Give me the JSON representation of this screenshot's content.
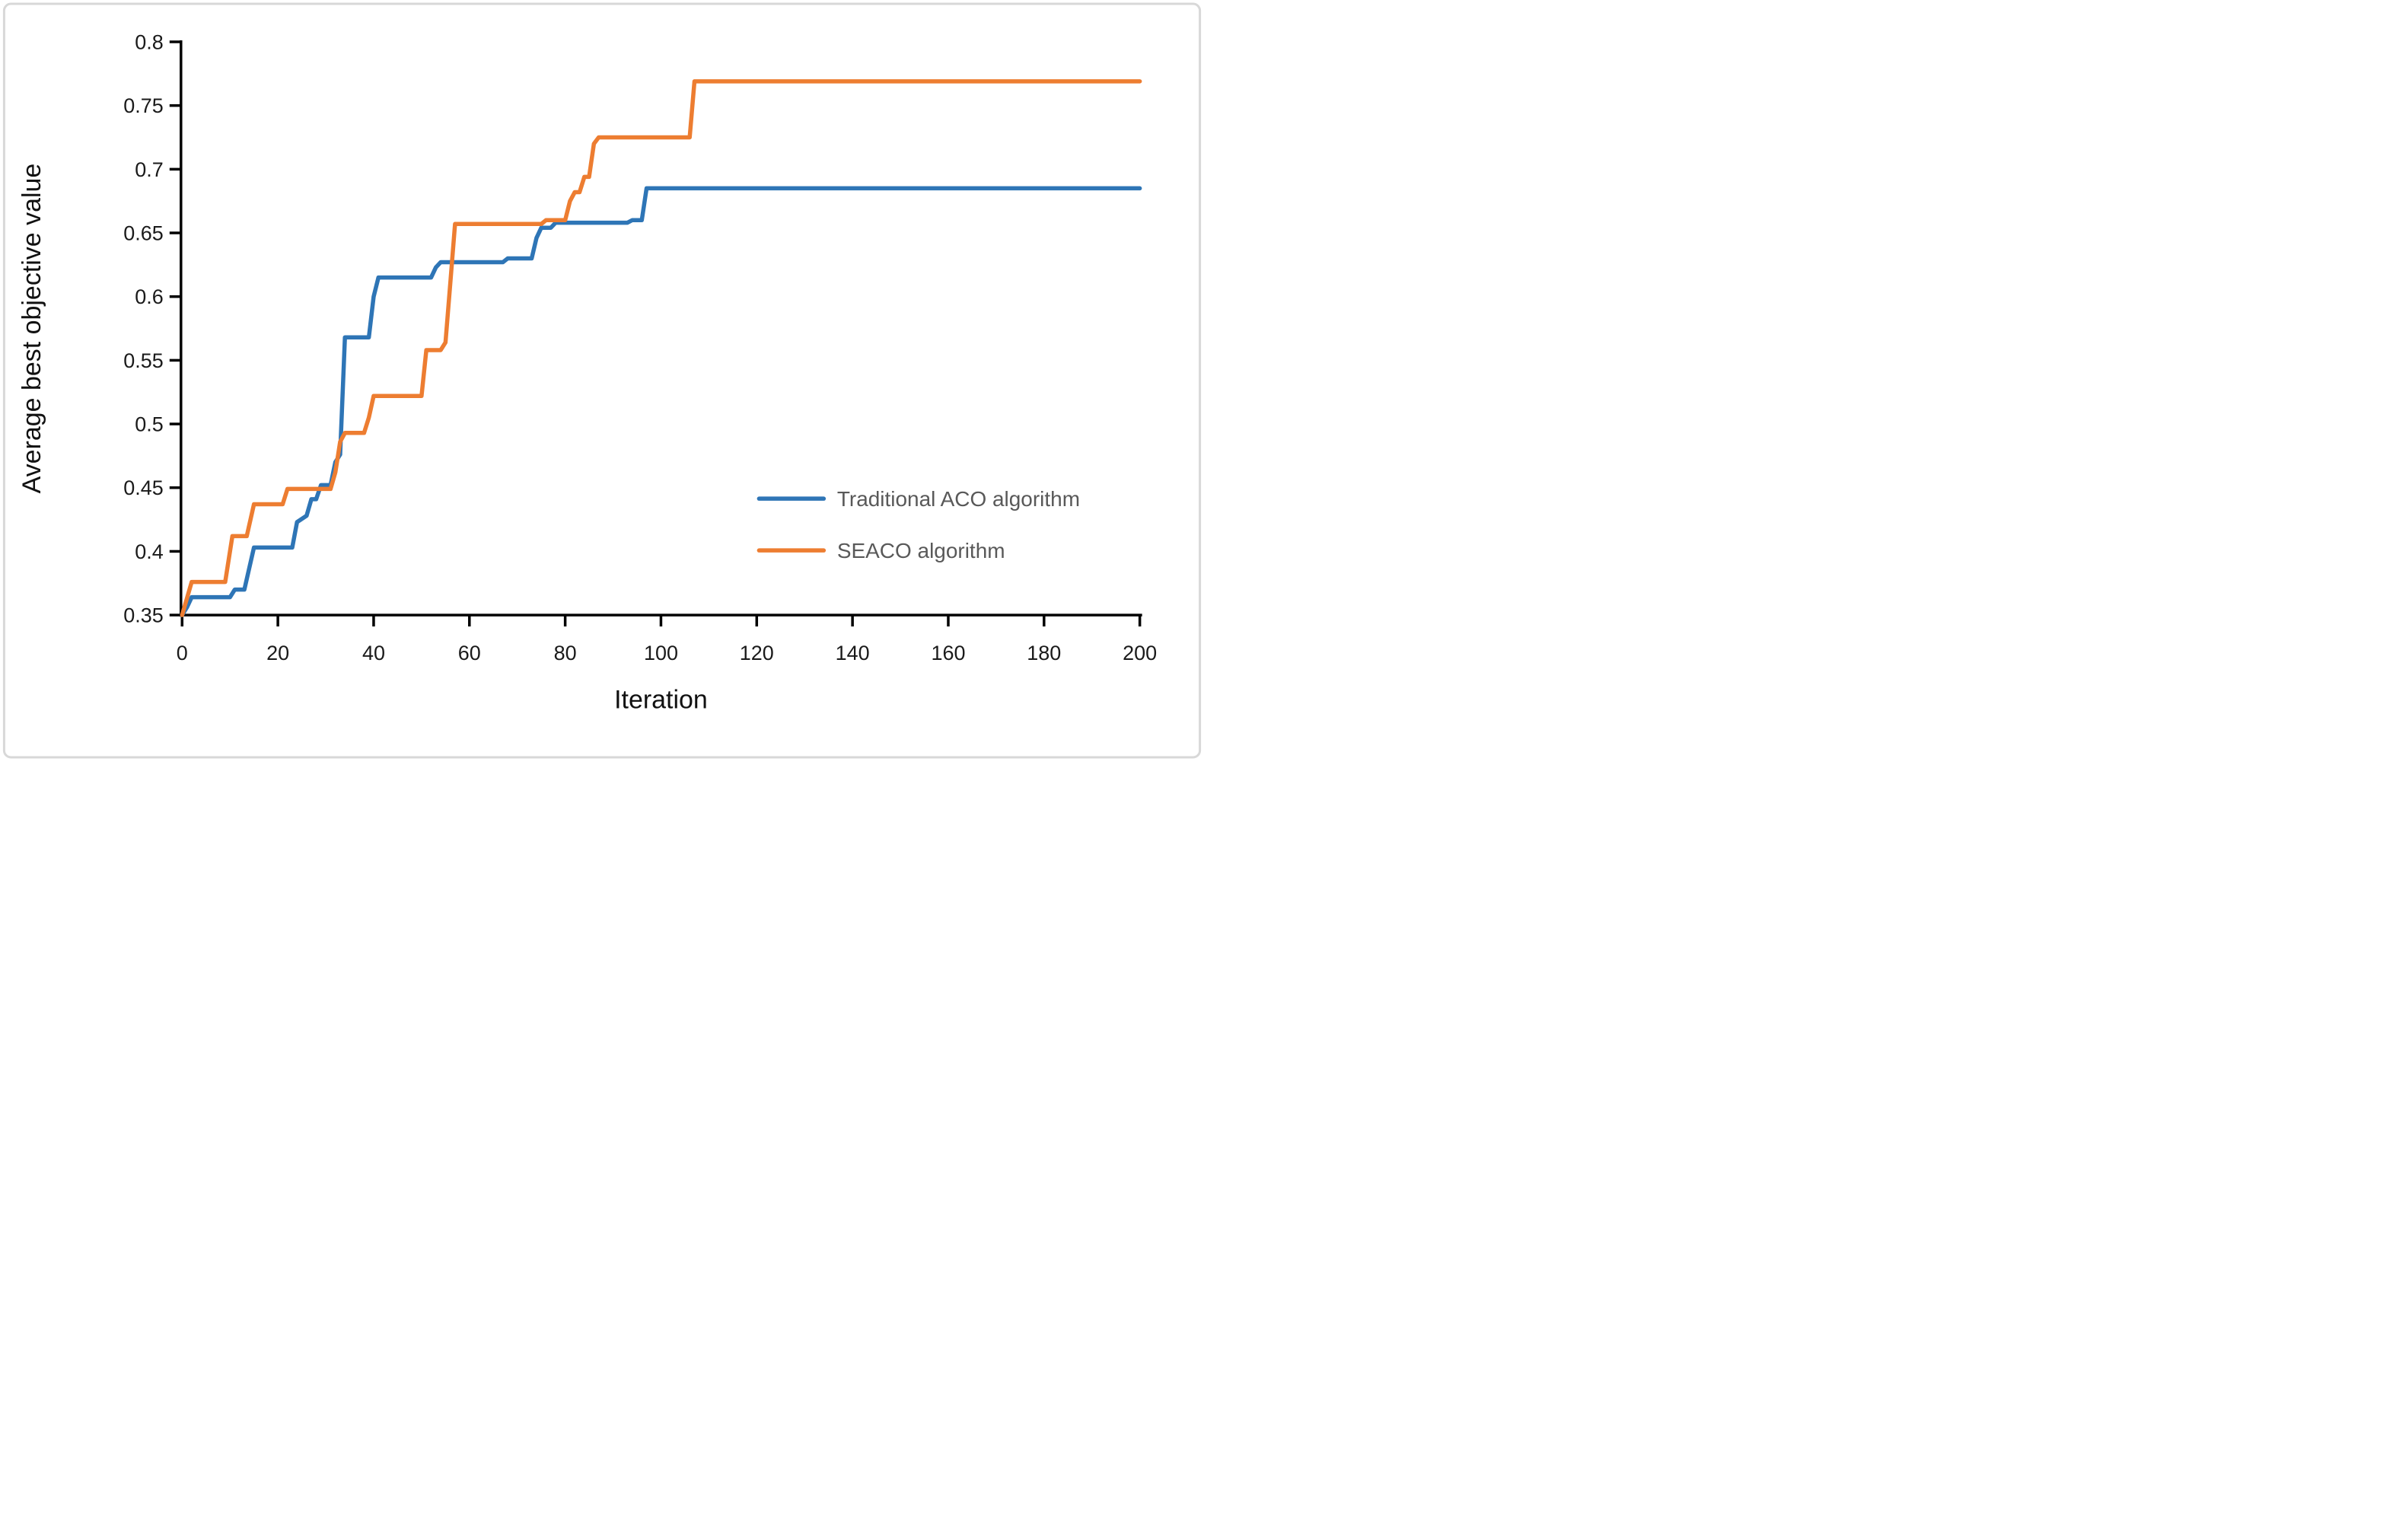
{
  "chart_data": {
    "type": "line",
    "title": "",
    "xlabel": "Iteration",
    "ylabel": "Average best objective value",
    "xlim": [
      0,
      200
    ],
    "ylim": [
      0.35,
      0.8
    ],
    "x_ticks": [
      0,
      20,
      40,
      60,
      80,
      100,
      120,
      140,
      160,
      180,
      200
    ],
    "x_tick_labels": [
      "0",
      "20",
      "40",
      "60",
      "80",
      "100",
      "120",
      "140",
      "160",
      "180",
      "200"
    ],
    "y_ticks": [
      0.35,
      0.4,
      0.45,
      0.5,
      0.55,
      0.6,
      0.65,
      0.7,
      0.75,
      0.8
    ],
    "y_tick_labels": [
      "0.35",
      "0.4",
      "0.45",
      "0.5",
      "0.55",
      "0.6",
      "0.65",
      "0.7",
      "0.75",
      "0.8"
    ],
    "grid": false,
    "legend_position": "right-middle",
    "series": [
      {
        "name": "Traditional ACO algorithm",
        "color": "#2E75B6",
        "points": [
          [
            0,
            0.35
          ],
          [
            1,
            0.356
          ],
          [
            2,
            0.364
          ],
          [
            10,
            0.364
          ],
          [
            11,
            0.37
          ],
          [
            13,
            0.37
          ],
          [
            15,
            0.403
          ],
          [
            23,
            0.403
          ],
          [
            24,
            0.423
          ],
          [
            26,
            0.428
          ],
          [
            27,
            0.441
          ],
          [
            28,
            0.441
          ],
          [
            29,
            0.452
          ],
          [
            31,
            0.452
          ],
          [
            32,
            0.47
          ],
          [
            33,
            0.476
          ],
          [
            34,
            0.568
          ],
          [
            39,
            0.568
          ],
          [
            40,
            0.6
          ],
          [
            41,
            0.615
          ],
          [
            52,
            0.615
          ],
          [
            53,
            0.623
          ],
          [
            54,
            0.627
          ],
          [
            67,
            0.627
          ],
          [
            68,
            0.63
          ],
          [
            73,
            0.63
          ],
          [
            74,
            0.646
          ],
          [
            75,
            0.654
          ],
          [
            77,
            0.654
          ],
          [
            78,
            0.658
          ],
          [
            93,
            0.658
          ],
          [
            94,
            0.66
          ],
          [
            96,
            0.66
          ],
          [
            97,
            0.685
          ],
          [
            200,
            0.685
          ]
        ]
      },
      {
        "name": "SEACO algorithm",
        "color": "#ED7D31",
        "points": [
          [
            0,
            0.35
          ],
          [
            2,
            0.376
          ],
          [
            9,
            0.376
          ],
          [
            10.5,
            0.412
          ],
          [
            13.5,
            0.412
          ],
          [
            15,
            0.437
          ],
          [
            21,
            0.437
          ],
          [
            22,
            0.449
          ],
          [
            31,
            0.449
          ],
          [
            32,
            0.462
          ],
          [
            33,
            0.486
          ],
          [
            34,
            0.493
          ],
          [
            38,
            0.493
          ],
          [
            39,
            0.505
          ],
          [
            40,
            0.522
          ],
          [
            50,
            0.522
          ],
          [
            51,
            0.558
          ],
          [
            54,
            0.558
          ],
          [
            55,
            0.564
          ],
          [
            56,
            0.61
          ],
          [
            57,
            0.657
          ],
          [
            75,
            0.657
          ],
          [
            76,
            0.66
          ],
          [
            80,
            0.66
          ],
          [
            81,
            0.675
          ],
          [
            82,
            0.682
          ],
          [
            83,
            0.682
          ],
          [
            84,
            0.694
          ],
          [
            85,
            0.694
          ],
          [
            86,
            0.72
          ],
          [
            87,
            0.725
          ],
          [
            106,
            0.725
          ],
          [
            107,
            0.769
          ],
          [
            200,
            0.769
          ]
        ]
      }
    ]
  },
  "legend": {
    "items": [
      {
        "label": "Traditional ACO algorithm",
        "color": "#2E75B6"
      },
      {
        "label": "SEACO algorithm",
        "color": "#ED7D31"
      }
    ]
  },
  "axes": {
    "x_title": "Iteration",
    "y_title": "Average best objective value"
  },
  "style": {
    "axis_color": "#000000",
    "tick_label_color": "#1a1a1a",
    "legend_text_color": "#595959",
    "frame_color": "#d8d8d8",
    "background": "#ffffff"
  }
}
